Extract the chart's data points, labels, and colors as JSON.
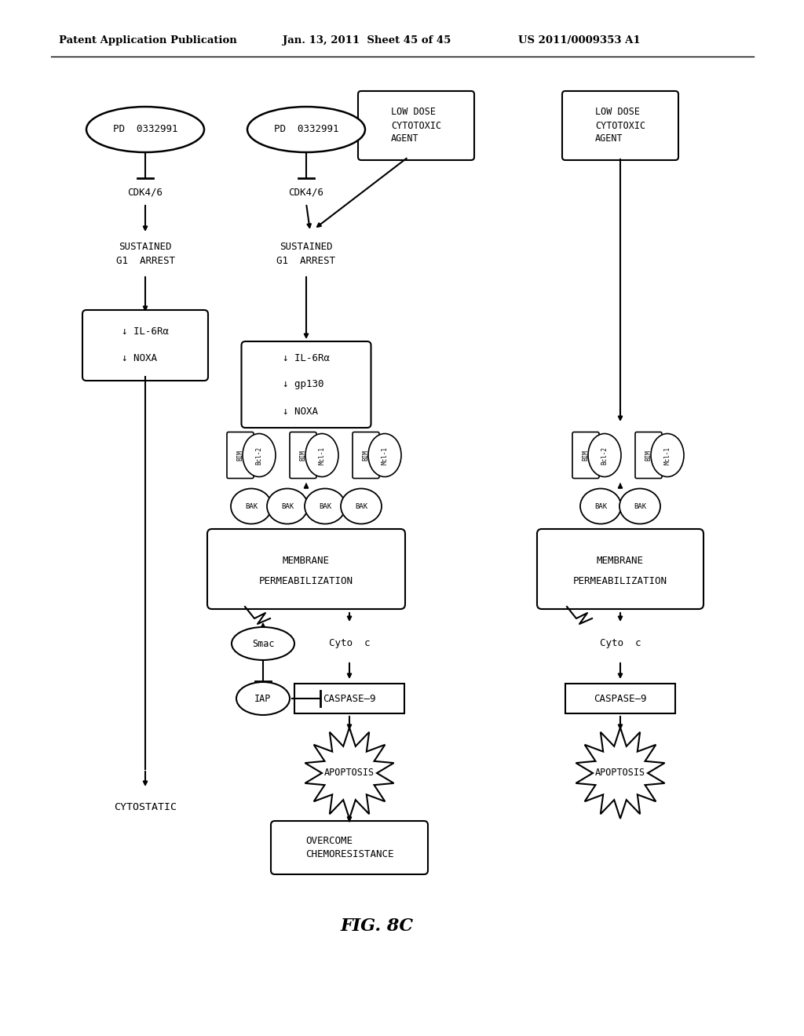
{
  "bg_color": "#ffffff",
  "header_text": "Patent Application Publication",
  "header_date": "Jan. 13, 2011  Sheet 45 of 45",
  "header_patent": "US 2011/0009353 A1",
  "fig_label": "FIG. 8C"
}
